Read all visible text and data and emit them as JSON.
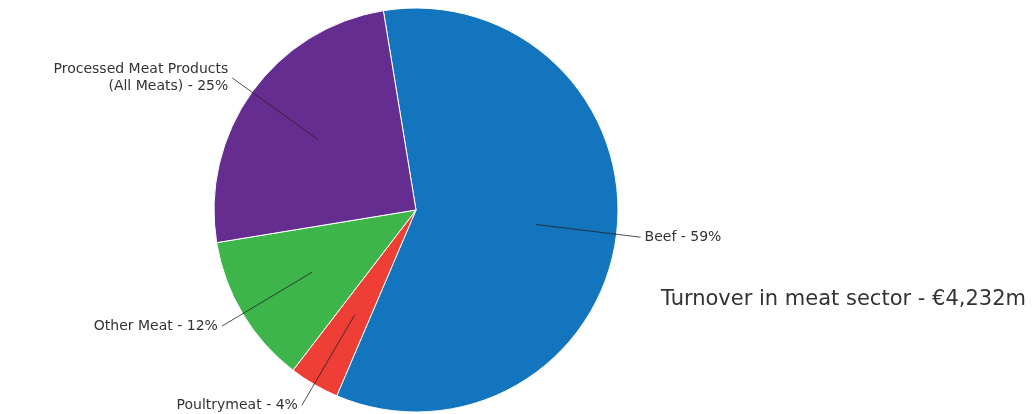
{
  "chart_data": {
    "type": "pie",
    "title": "Turnover in meat sector - €4,232m",
    "categories": [
      "Beef - 59%",
      "Poultrymeat - 4%",
      "Other Meat - 12%",
      "Processed Meat Products (All Meats) - 25%"
    ],
    "values": [
      59,
      4,
      12,
      25
    ],
    "colors": [
      "#1275bd",
      "#ee3e36",
      "#3db54a",
      "#662d91"
    ]
  }
}
